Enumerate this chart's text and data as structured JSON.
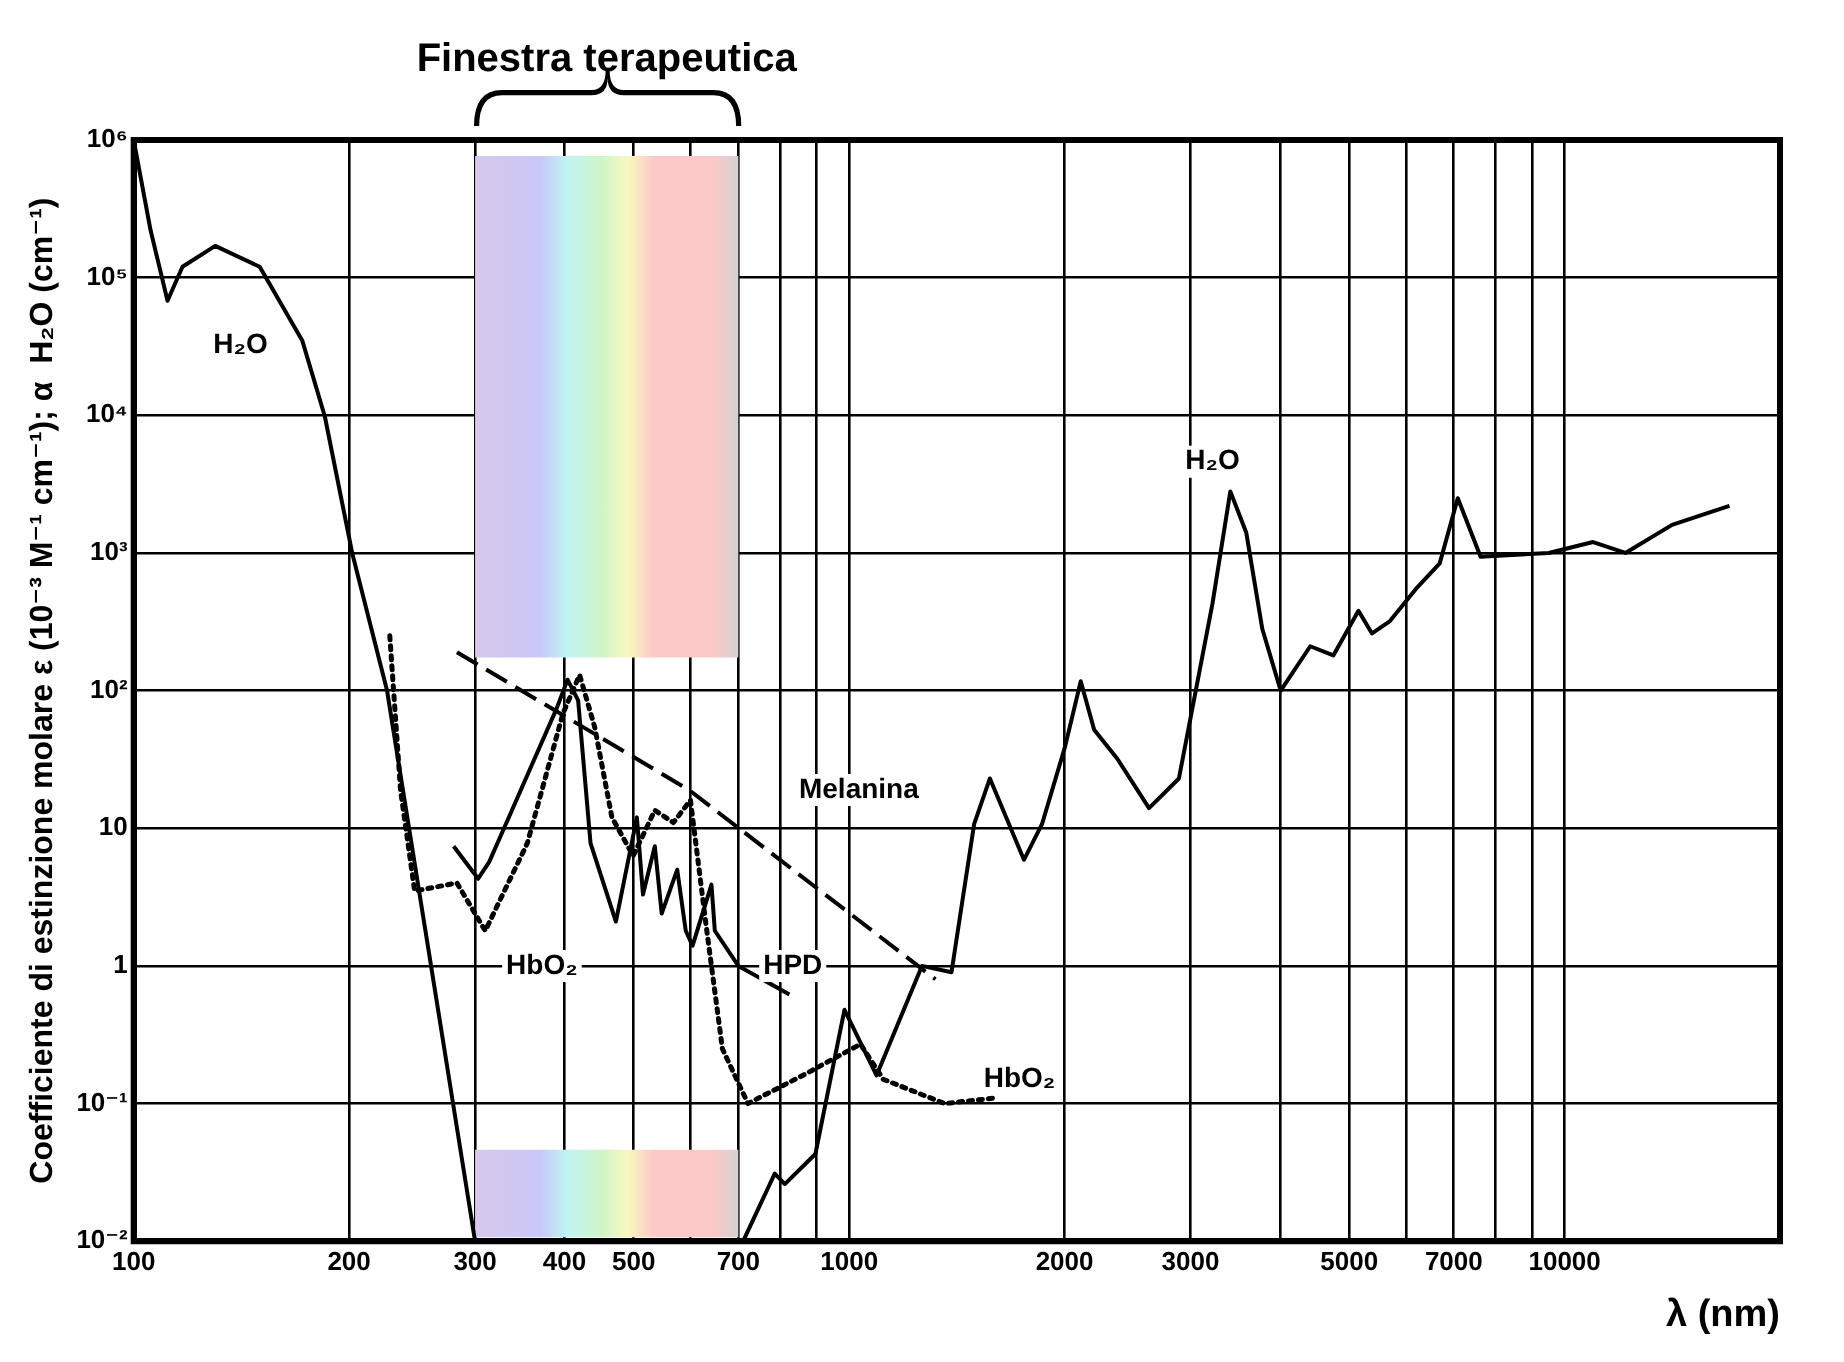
{
  "chart_data": {
    "type": "line",
    "xlabel": "λ (nm)",
    "ylabel": "Coefficiente di estinzione molare ε (10⁻³ M⁻¹ cm⁻¹); α  H₂O (cm⁻¹)",
    "log": "xy",
    "grid": true,
    "legend": false,
    "marker": "none",
    "xlim": [
      100,
      20000
    ],
    "xticks": [
      100,
      200,
      300,
      400,
      500,
      {
        "value": 600,
        "label": null
      },
      700,
      {
        "value": 800,
        "label": null
      },
      {
        "value": 900,
        "label": null
      },
      1000,
      2000,
      3000,
      {
        "value": 4000,
        "label": null
      },
      5000,
      {
        "value": 6000,
        "label": null
      },
      7000,
      {
        "value": 8000,
        "label": null
      },
      {
        "value": 9000,
        "label": null
      },
      10000
    ],
    "ylim": [
      0.01,
      1000000
    ],
    "yticks": [
      {
        "value": 0.01,
        "label": "10⁻²"
      },
      {
        "value": 0.1,
        "label": "10⁻¹"
      },
      1,
      10,
      {
        "value": 100,
        "label": "10²"
      },
      {
        "value": 1000,
        "label": "10³"
      },
      {
        "value": 10000,
        "label": "10⁴"
      },
      {
        "value": 100000,
        "label": "10⁵"
      },
      {
        "value": 1000000,
        "label": "10⁶"
      }
    ],
    "series": [
      {
        "color": "#000000",
        "line_style": "solid",
        "x": [
          100,
          105.6,
          111.5,
          117,
          130,
          150,
          172,
          185,
          202,
          226,
          300,
          500,
          711,
          787,
          813,
          897,
          985,
          1092,
          1264,
          1390,
          1495,
          1573,
          1755,
          1860,
          2003,
          2107,
          2200,
          2370,
          2625,
          2890,
          3220,
          3410,
          3590,
          3780,
          4010,
          4410,
          4750,
          5150,
          5380,
          5700,
          6220,
          6690,
          7090,
          7630,
          9500,
          10960,
          12160,
          14130,
          17000
        ],
        "values": [
          1000000,
          220000,
          68000,
          120000,
          170000,
          120000,
          35000,
          9800,
          1000,
          100,
          0.01,
          null,
          0.01,
          0.031,
          0.026,
          0.043,
          0.48,
          0.16,
          1.0,
          0.9,
          10.7,
          23,
          5.9,
          10.7,
          39,
          117,
          52,
          32,
          14,
          23,
          430,
          2800,
          1400,
          280,
          100,
          210,
          180,
          380,
          260,
          320,
          560,
          840,
          2500,
          940,
          1000,
          1200,
          1000,
          1600,
          2200
        ]
      },
      {
        "color": "#000000",
        "line_style": "dotted",
        "x": [
          228,
          236,
          247,
          283,
          310,
          355,
          398,
          420,
          441,
          466,
          499,
          535,
          568,
          600,
          630,
          665,
          722,
          861,
          1037,
          1116,
          1360,
          1608
        ],
        "values": [
          250,
          19,
          3.5,
          4.0,
          1.8,
          7.8,
          68,
          130,
          54,
          12,
          6.3,
          13.5,
          11,
          16,
          2.1,
          0.25,
          0.1,
          0.16,
          0.27,
          0.15,
          0.1,
          0.11
        ]
      },
      {
        "color": "#000000",
        "line_style": "solid",
        "x": [
          280,
          303,
          314,
          390,
          404,
          418,
          435,
          472,
          505,
          515,
          535,
          547,
          575,
          591,
          604,
          642,
          649,
          700,
          825
        ],
        "values": [
          7.4,
          4.3,
          5.7,
          74,
          120,
          85,
          7.8,
          2.1,
          12,
          3.3,
          7.4,
          2.4,
          5.0,
          1.8,
          1.4,
          3.9,
          1.8,
          1.0,
          0.62
        ]
      },
      {
        "name": "Melanina",
        "color": "#000000",
        "line_style": "dashed",
        "x": [
          283,
          597,
          1320
        ],
        "values": [
          190,
          19,
          0.8
        ]
      }
    ],
    "bands": [
      {
        "axis": "x",
        "from": 300,
        "to": 700,
        "label": "Finestra terapeutica"
      },
      {
        "axis": "x",
        "from": 300,
        "to": 700
      }
    ],
    "annotations": [
      {
        "text": "H₂O",
        "x": 141,
        "y": 32000
      },
      {
        "text": "H₂O",
        "x": 3220,
        "y": 4600
      },
      {
        "text": "HbO₂",
        "x": 372,
        "y": 1
      },
      {
        "text": "HPD",
        "x": 834,
        "y": 1
      },
      {
        "text": "HbO₂",
        "x": 1730,
        "y": 0.15
      }
    ]
  }
}
